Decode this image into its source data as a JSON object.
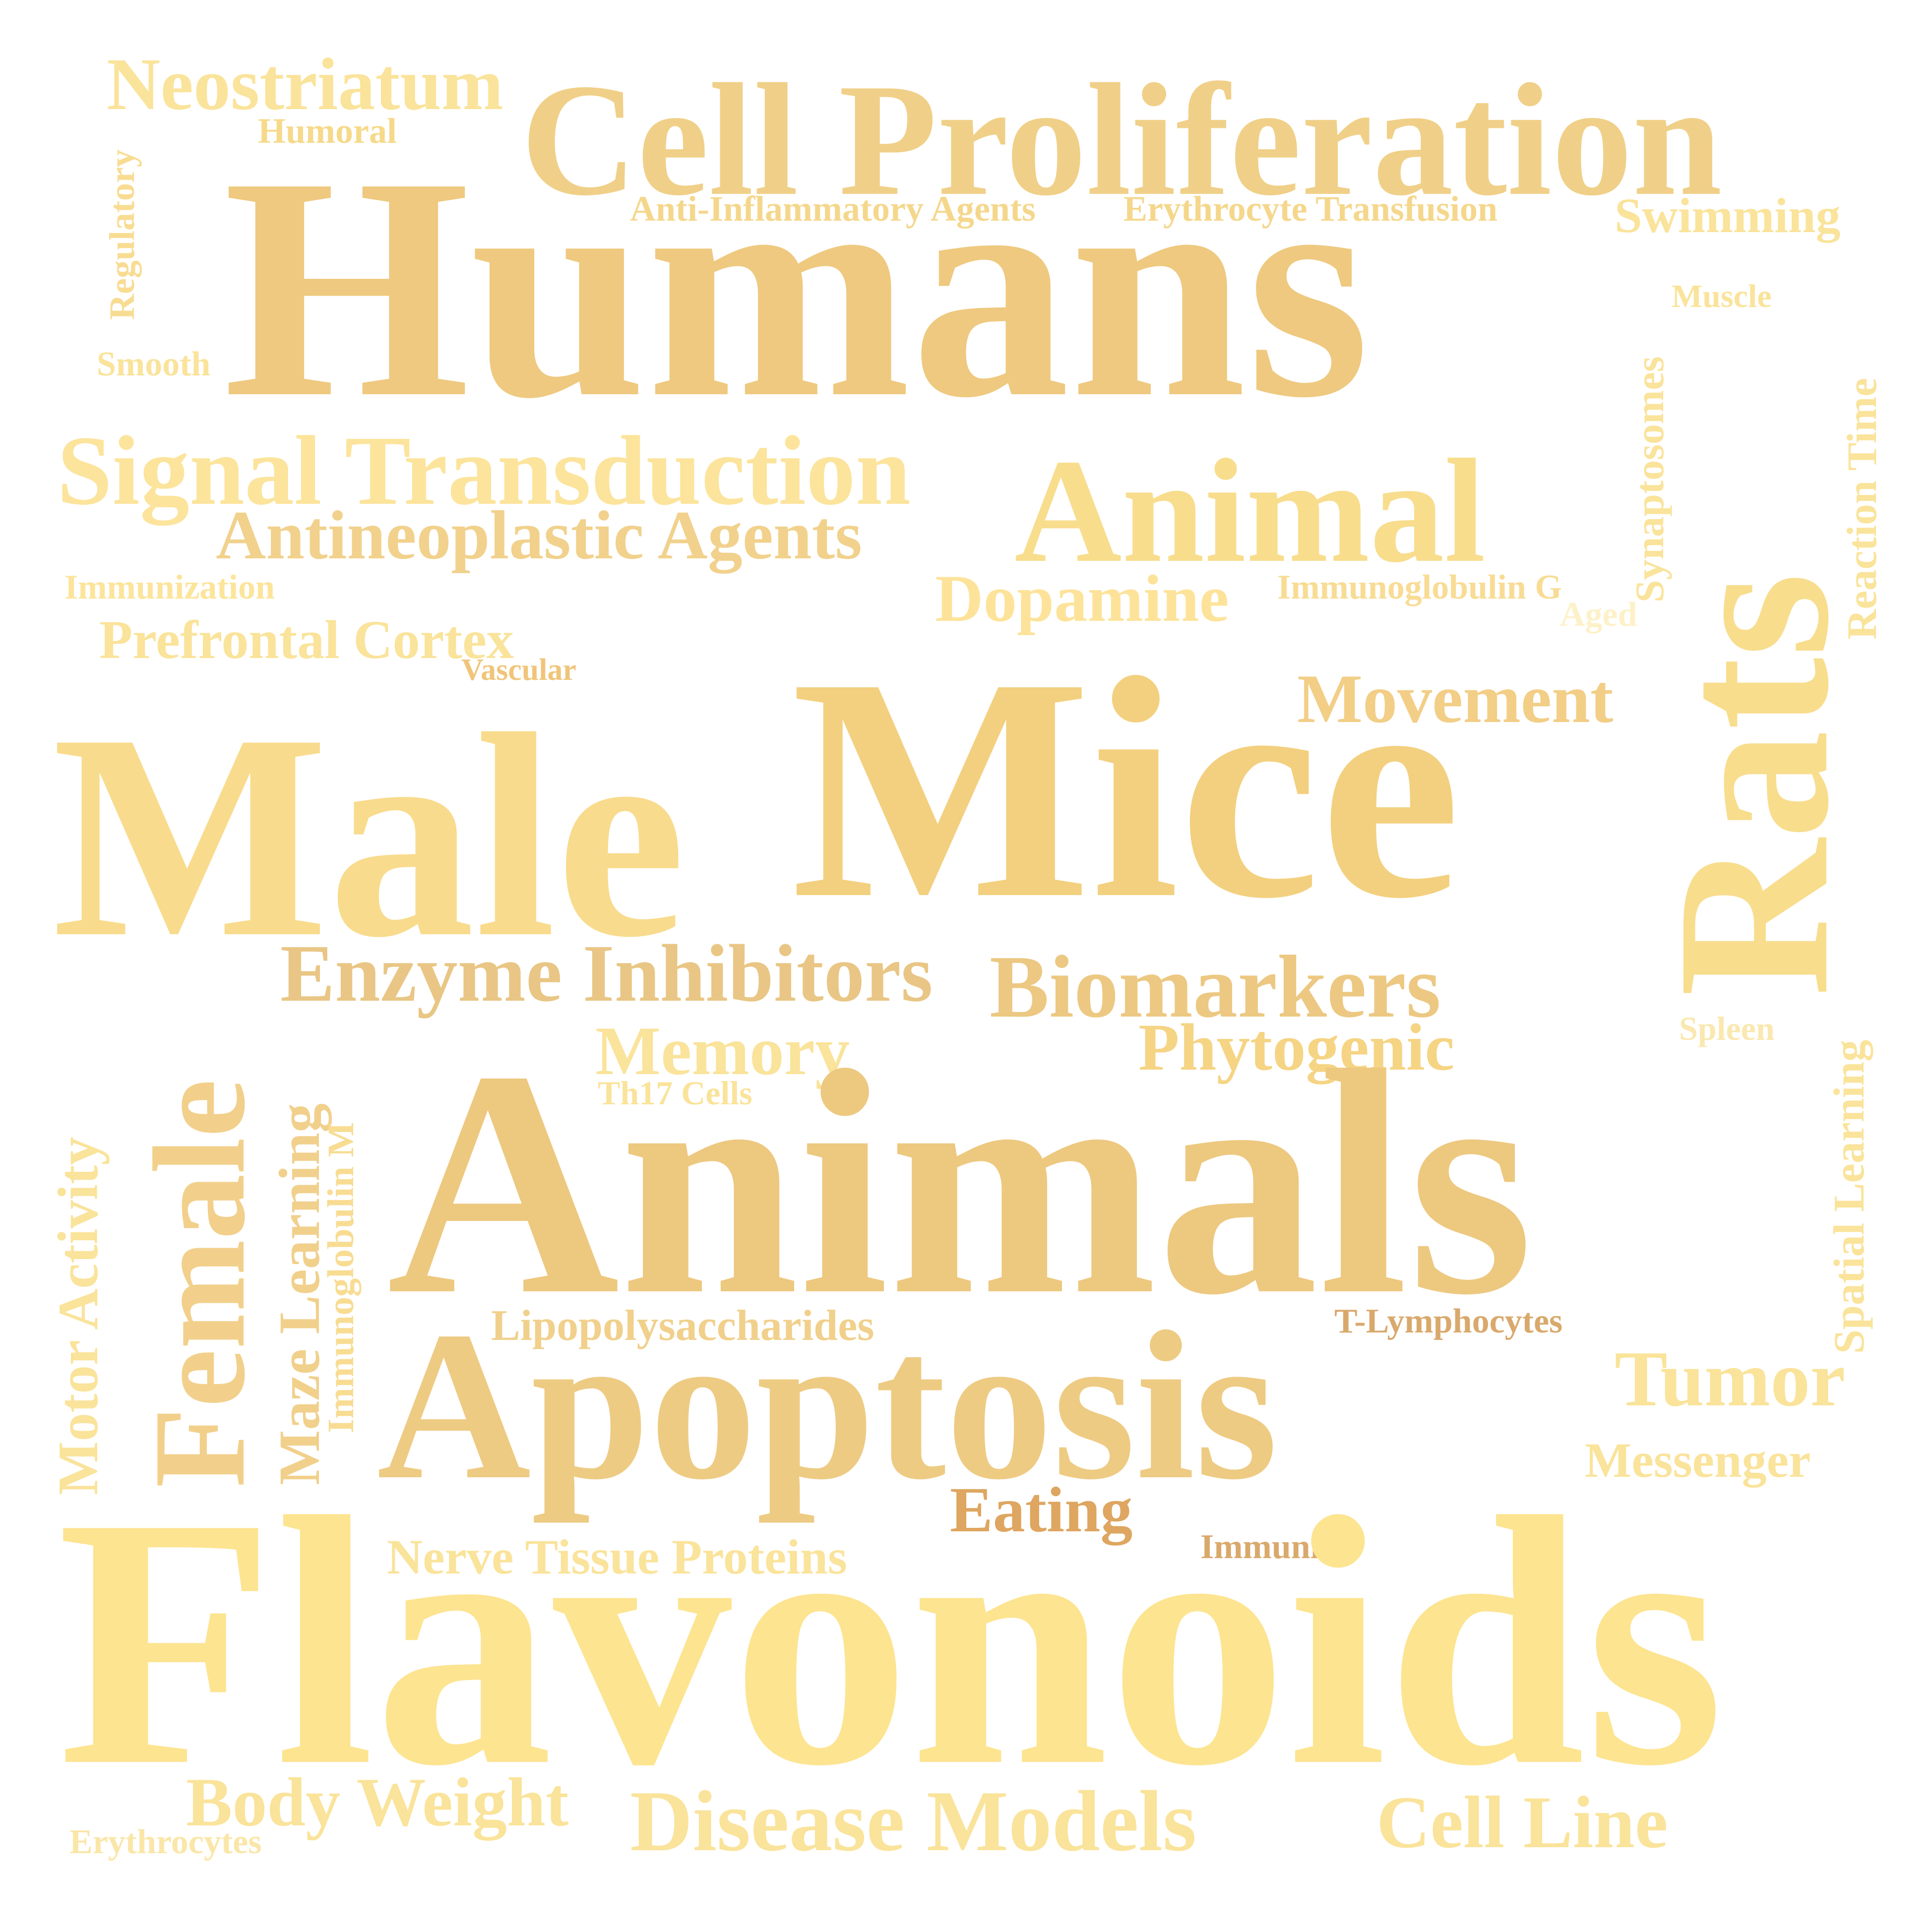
{
  "words": [
    {
      "text": "Neostriatum",
      "color": "#fae39a"
    },
    {
      "text": "Humoral",
      "color": "#f6d98a"
    },
    {
      "text": "Cell Proliferation",
      "color": "#f0d088"
    },
    {
      "text": "Regulatory",
      "color": "#f8dc92"
    },
    {
      "text": "Humans",
      "color": "#eec97f"
    },
    {
      "text": "Anti-Inflammatory Agents",
      "color": "#f5d78c"
    },
    {
      "text": "Erythrocyte Transfusion",
      "color": "#f5d78c"
    },
    {
      "text": "Swimming",
      "color": "#fae39a"
    },
    {
      "text": "Muscle",
      "color": "#fae39a"
    },
    {
      "text": "Smooth",
      "color": "#fae39a"
    },
    {
      "text": "Synaptosomes",
      "color": "#fae39a"
    },
    {
      "text": "Reaction Time",
      "color": "#fae39a"
    },
    {
      "text": "Signal Transduction",
      "color": "#fce49c"
    },
    {
      "text": "Animal",
      "color": "#f8dd8d"
    },
    {
      "text": "Antineoplastic Agents",
      "color": "#f1d18c"
    },
    {
      "text": "Immunization",
      "color": "#fce49a"
    },
    {
      "text": "Dopamine",
      "color": "#fde39a"
    },
    {
      "text": "Immunoglobulin G",
      "color": "#f8dc94"
    },
    {
      "text": "Aged",
      "color": "#fdf1c8"
    },
    {
      "text": "Prefrontal Cortex",
      "color": "#fae39a"
    },
    {
      "text": "Vascular",
      "color": "#f0c57a"
    },
    {
      "text": "Movement",
      "color": "#f2ce86"
    },
    {
      "text": "Male",
      "color": "#f8db8c"
    },
    {
      "text": "Mice",
      "color": "#f3d07f"
    },
    {
      "text": "Rats",
      "color": "#f8dd8d"
    },
    {
      "text": "Enzyme Inhibitors",
      "color": "#e9c685"
    },
    {
      "text": "Biomarkers",
      "color": "#ecc882"
    },
    {
      "text": "Female",
      "color": "#f2d08b"
    },
    {
      "text": "Memory",
      "color": "#fae39a"
    },
    {
      "text": "Phytogenic",
      "color": "#f5d484"
    },
    {
      "text": "Spleen",
      "color": "#fae8b0"
    },
    {
      "text": "Th17 Cells",
      "color": "#fae39a"
    },
    {
      "text": "Motor Activity",
      "color": "#fae39a"
    },
    {
      "text": "Maze Learning",
      "color": "#f1d08c"
    },
    {
      "text": "Immunoglobulin M",
      "color": "#f8dc92"
    },
    {
      "text": "Animals",
      "color": "#edc87f"
    },
    {
      "text": "Spatial Learning",
      "color": "#fae39a"
    },
    {
      "text": "Lipopolysaccharides",
      "color": "#f1d08c"
    },
    {
      "text": "T-Lymphocytes",
      "color": "#d9a96c"
    },
    {
      "text": "Apoptosis",
      "color": "#eecb83"
    },
    {
      "text": "Tumor",
      "color": "#fae39a"
    },
    {
      "text": "Messenger",
      "color": "#fae39a"
    },
    {
      "text": "Eating",
      "color": "#dea660"
    },
    {
      "text": "Nerve Tissue Proteins",
      "color": "#fae39a"
    },
    {
      "text": "Immunity",
      "color": "#d9a96c"
    },
    {
      "text": "Flavonoids",
      "color": "#fde490"
    },
    {
      "text": "Body Weight",
      "color": "#fae39a"
    },
    {
      "text": "Disease Models",
      "color": "#fae39a"
    },
    {
      "text": "Cell Line",
      "color": "#fae39a"
    },
    {
      "text": "Erythrocytes",
      "color": "#fae6a8"
    }
  ]
}
